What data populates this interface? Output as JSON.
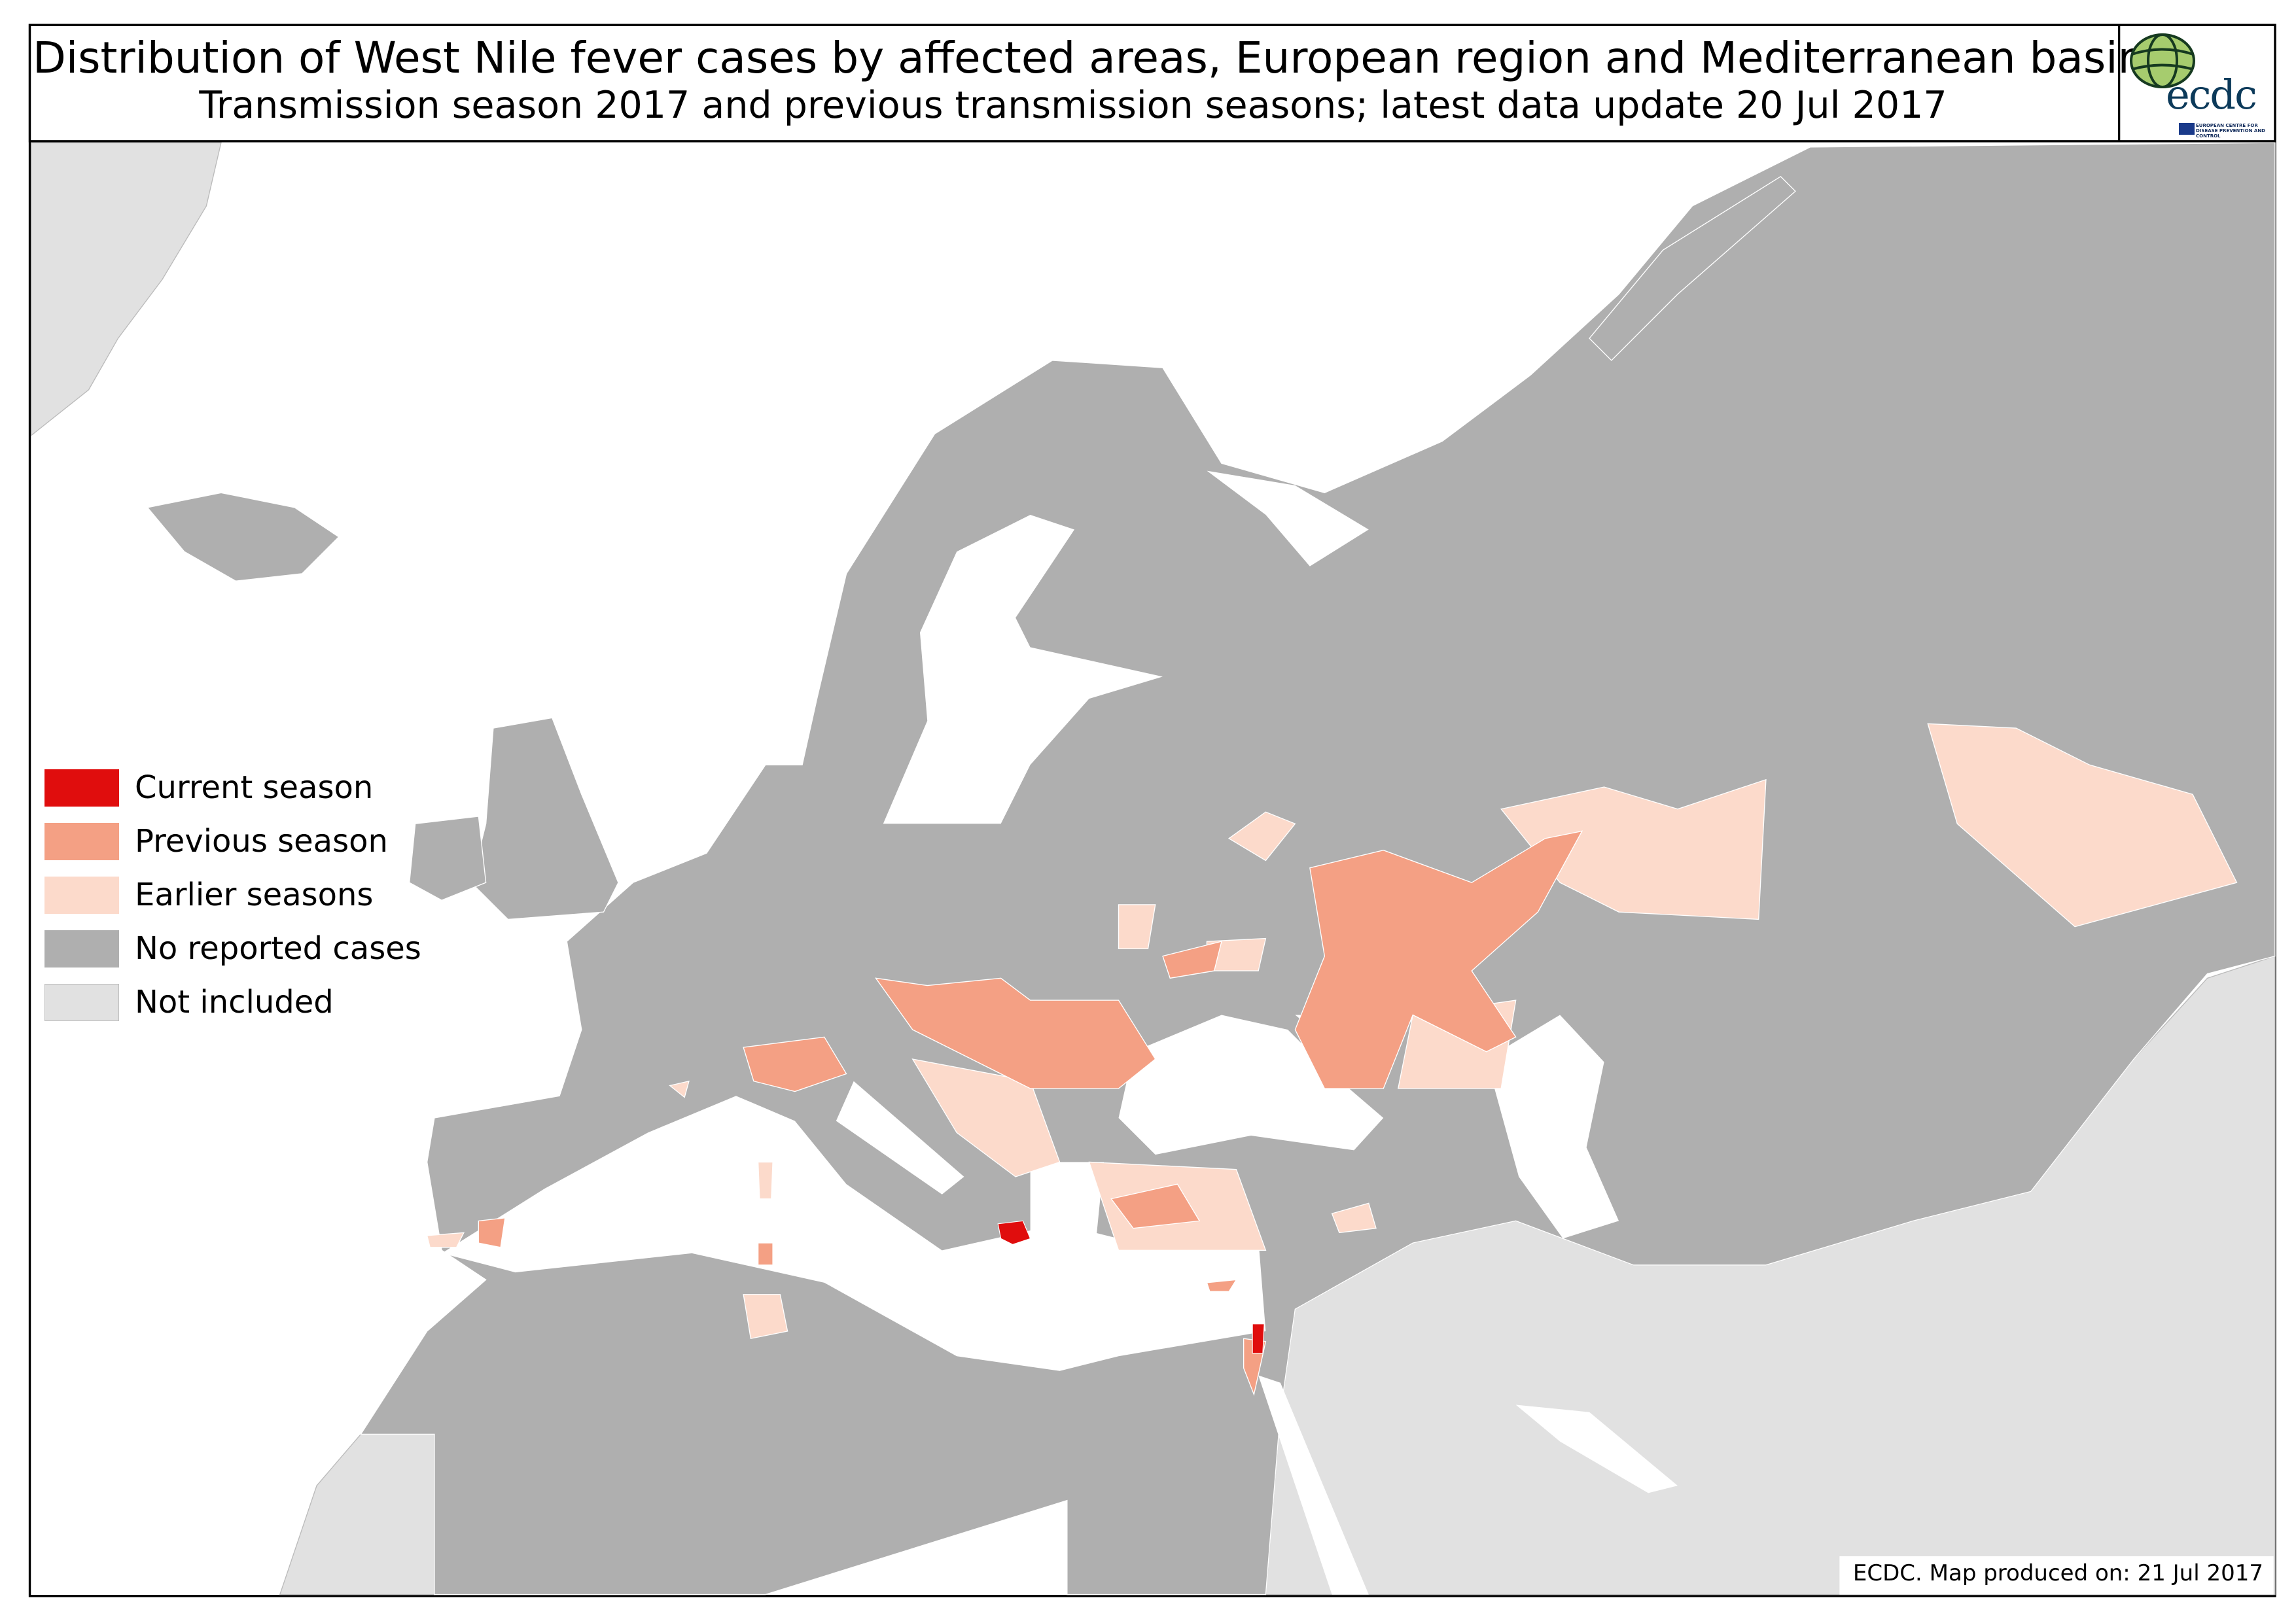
{
  "header": {
    "title": "Distribution of West Nile fever cases by affected areas, European region and Mediterranean basin",
    "subtitle": "Transmission season 2017 and previous transmission seasons; latest data update  20 Jul 2017"
  },
  "logo": {
    "text": "ecdc",
    "subtext": "EUROPEAN CENTRE FOR DISEASE PREVENTION AND CONTROL"
  },
  "legend": {
    "items": [
      {
        "label": "Current season",
        "color": "#e00d0d"
      },
      {
        "label": "Previous season",
        "color": "#f4a084"
      },
      {
        "label": "Earlier seasons",
        "color": "#fcdacb"
      },
      {
        "label": "No reported cases",
        "color": "#afafaf"
      },
      {
        "label": "Not included",
        "color": "#e1e1e1"
      }
    ]
  },
  "footer": {
    "text": "ECDC. Map produced on: 21 Jul 2017"
  },
  "colors": {
    "water": "#ffffff",
    "border": "#000000",
    "region_border": "#ffffff"
  }
}
